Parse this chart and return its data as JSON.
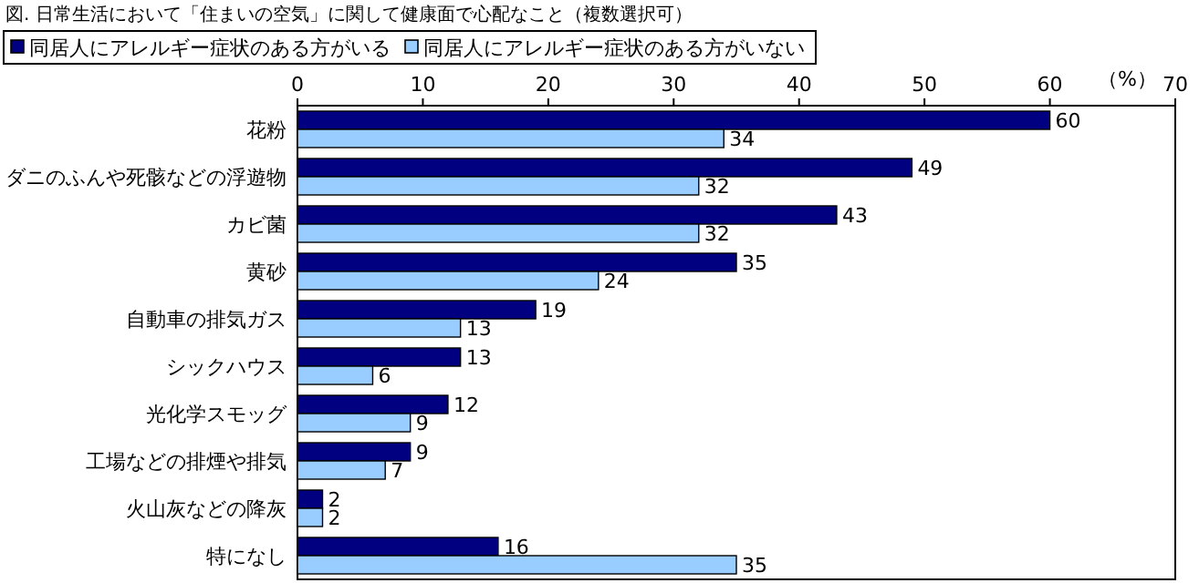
{
  "chart_data": {
    "type": "bar",
    "orientation": "horizontal",
    "title": "図. 日常生活において「住まいの空気」に関して健康面で心配なこと（複数選択可）",
    "xlabel": "（%）",
    "categories": [
      "花粉",
      "ダニのふんや死骸などの浮遊物",
      "カビ菌",
      "黄砂",
      "自動車の排気ガス",
      "シックハウス",
      "光化学スモッグ",
      "工場などの排煙や排気",
      "火山灰などの降灰",
      "特になし"
    ],
    "series": [
      {
        "name": "同居人にアレルギー症状のある方がいる",
        "color": "#000080",
        "values": [
          60,
          49,
          43,
          35,
          19,
          13,
          12,
          9,
          2,
          16
        ]
      },
      {
        "name": "同居人にアレルギー症状のある方がいない",
        "color": "#99ccff",
        "values": [
          34,
          32,
          32,
          24,
          13,
          6,
          9,
          7,
          2,
          35
        ]
      }
    ],
    "xlim": [
      0,
      70
    ],
    "xticks": [
      0,
      10,
      20,
      30,
      40,
      50,
      60,
      70
    ],
    "data_labels": true,
    "legend": "top",
    "grid": false
  }
}
